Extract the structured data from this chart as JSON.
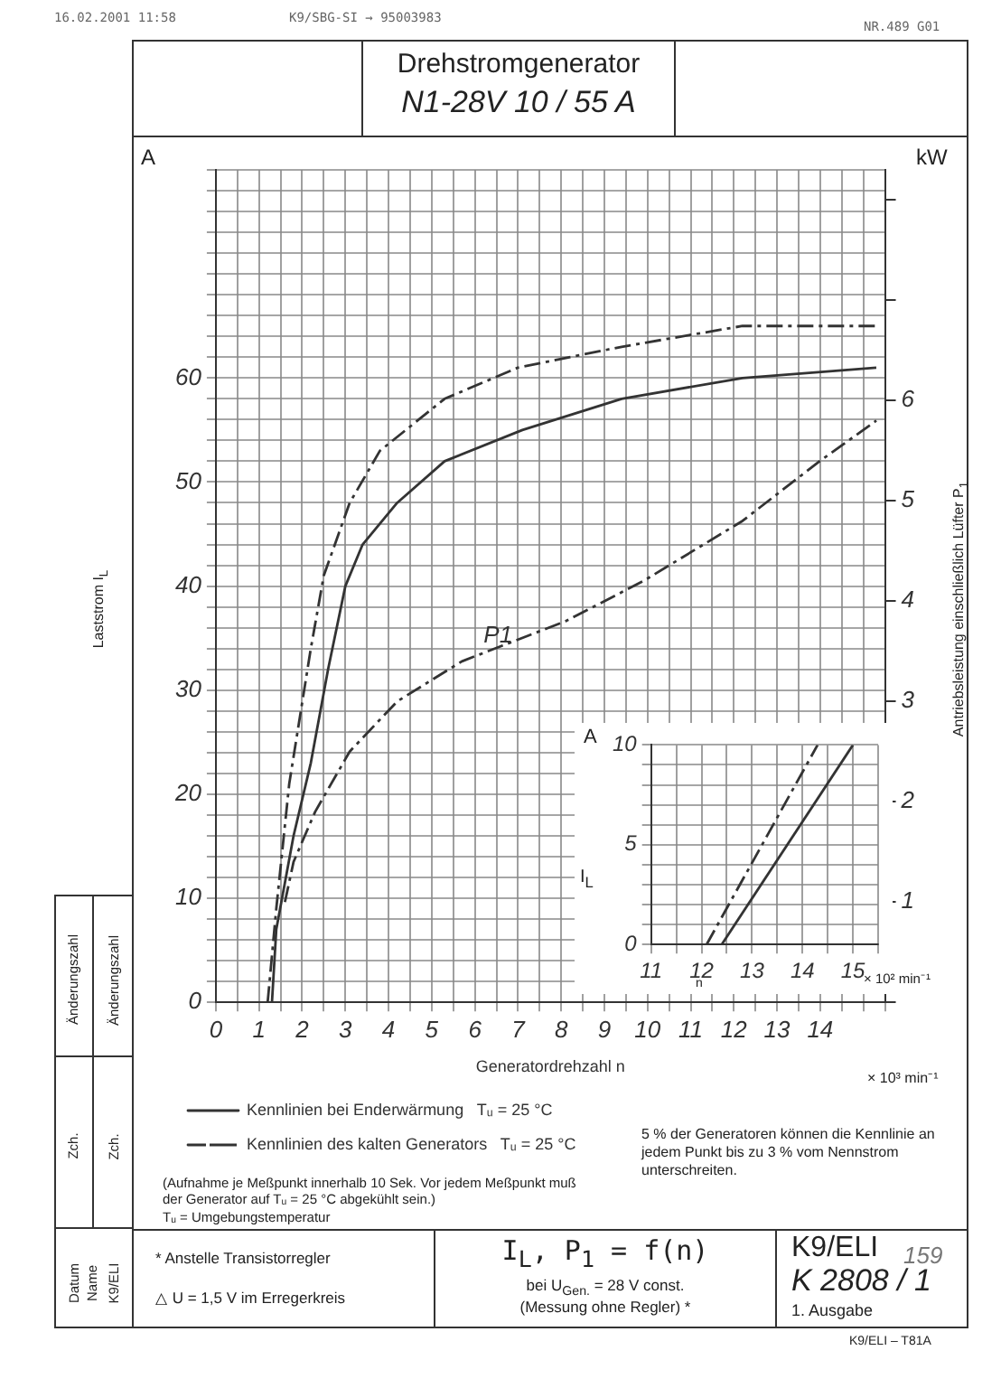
{
  "chart_data": [
    {
      "type": "line",
      "title": "Drehstromgenerator",
      "subtitle": "N1-28V 10 / 55 A",
      "xlabel": "Generatordrehzahl n",
      "ylabel": "Laststrom I$_{L}$",
      "y2label": "Antriebsleistung einschließlich Lüfter P$_{1}$",
      "annotations": [
        "16.02.2001  11:58",
        "K9/SBG-SI → 95003983",
        "NR.489  G01",
        "(Aufnahme je Meßpunkt innerhalb 10 Sek. Vor jedem Meßpunkt muß der Generator auf Tᵤ = 25 °C abgekühlt sein.)",
        "Tᵤ = Umgebungstemperatur",
        "5 % der Generatoren können die Kennlinie an jedem Punkt bis zu 3 % vom Nennstrom unterschreiten.",
        "* Anstelle Transistorregler",
        "△ U = 1,5 V im Erregerkreis",
        "I$_{L}$, P$_{1}$ = f(n)",
        "bei U$_{Gen.}$ = 28 V const.",
        "(Messung ohne Regler) *",
        "K9/ELI",
        "K 2808 / 1",
        "159",
        "1. Ausgabe",
        "K9/ELI – T81A",
        "Änderungszahl",
        "Zch.",
        "Änderungszahl",
        "Zch.",
        "Datum",
        "Name",
        "K9/ELI",
        "A",
        "kW",
        "× 10³ min⁻¹"
      ],
      "xlim": [
        0,
        15.5
      ],
      "xticks": [
        0,
        {
          "value": 0.5,
          "label": null
        },
        1,
        {
          "value": 1.5,
          "label": null
        },
        2,
        {
          "value": 2.5,
          "label": null
        },
        3,
        {
          "value": 3.5,
          "label": null
        },
        4,
        {
          "value": 4.5,
          "label": null
        },
        5,
        {
          "value": 5.5,
          "label": null
        },
        6,
        {
          "value": 6.5,
          "label": null
        },
        7,
        {
          "value": 7.5,
          "label": null
        },
        8,
        {
          "value": 8.5,
          "label": null
        },
        9,
        {
          "value": 9.5,
          "label": null
        },
        10,
        {
          "value": 10.5,
          "label": null
        },
        11,
        {
          "value": 11.5,
          "label": null
        },
        12,
        {
          "value": 12.5,
          "label": null
        },
        13,
        {
          "value": 13.5,
          "label": null
        },
        14,
        {
          "value": 14.5,
          "label": null
        },
        {
          "value": 15,
          "label": null
        },
        {
          "value": 15.5,
          "label": null
        }
      ],
      "ylim": [
        0,
        80
      ],
      "yticks": [
        0,
        {
          "value": 2,
          "label": null
        },
        {
          "value": 4,
          "label": null
        },
        {
          "value": 6,
          "label": null
        },
        {
          "value": 8,
          "label": null
        },
        10,
        {
          "value": 12,
          "label": null
        },
        {
          "value": 14,
          "label": null
        },
        {
          "value": 16,
          "label": null
        },
        {
          "value": 18,
          "label": null
        },
        20,
        {
          "value": 22,
          "label": null
        },
        {
          "value": 24,
          "label": null
        },
        {
          "value": 26,
          "label": null
        },
        {
          "value": 28,
          "label": null
        },
        30,
        {
          "value": 32,
          "label": null
        },
        {
          "value": 34,
          "label": null
        },
        {
          "value": 36,
          "label": null
        },
        {
          "value": 38,
          "label": null
        },
        40,
        {
          "value": 42,
          "label": null
        },
        {
          "value": 44,
          "label": null
        },
        {
          "value": 46,
          "label": null
        },
        {
          "value": 48,
          "label": null
        },
        50,
        {
          "value": 52,
          "label": null
        },
        {
          "value": 54,
          "label": null
        },
        {
          "value": 56,
          "label": null
        },
        {
          "value": 58,
          "label": null
        },
        60,
        {
          "value": 62,
          "label": null
        },
        {
          "value": 64,
          "label": null
        },
        {
          "value": 66,
          "label": null
        },
        {
          "value": 68,
          "label": null
        },
        {
          "value": 70,
          "label": null
        },
        {
          "value": 72,
          "label": null
        },
        {
          "value": 74,
          "label": null
        },
        {
          "value": 76,
          "label": null
        },
        {
          "value": 78,
          "label": null
        },
        {
          "value": 80,
          "label": null
        }
      ],
      "y2lim": [
        0,
        8.3
      ],
      "y2ticks": [
        {
          "value": 0,
          "label": null
        },
        1,
        2,
        3,
        4,
        5,
        6,
        {
          "value": 7,
          "label": null
        },
        {
          "value": 8,
          "label": null
        }
      ],
      "grid": true,
      "legend": "bottom",
      "series": [
        {
          "name": "Kennlinien bei Enderwärmung   Tᵤ = 25 °C",
          "color": "#333333",
          "line_style": "solid",
          "x": [
            1.3,
            1.4,
            1.8,
            2.2,
            2.6,
            3.0,
            3.4,
            4.2,
            5.3,
            7.1,
            9.4,
            12.2,
            15.3
          ],
          "values": [
            0,
            7,
            16,
            23,
            32,
            40,
            44,
            48,
            52,
            55,
            58,
            60,
            61
          ]
        },
        {
          "name": "Kennlinien des kalten Generators   Tᵤ = 25 °C",
          "color": "#333333",
          "line_style": "dashed",
          "x": [
            1.2,
            1.4,
            1.7,
            2.2,
            2.5,
            3.1,
            3.8,
            5.3,
            7.0,
            9.4,
            12.2,
            15.3
          ],
          "values": [
            0,
            9,
            21,
            34,
            41,
            48,
            53,
            58,
            61,
            63,
            65,
            65
          ]
        },
        {
          "name": "P1",
          "color": "#333333",
          "line_style": "dashed",
          "axis": "y2",
          "x": [
            1.6,
            1.8,
            2.3,
            3.1,
            4.2,
            5.7,
            8.1,
            9.9,
            12.2,
            14.0,
            15.3
          ],
          "values": [
            1.0,
            1.4,
            1.9,
            2.5,
            3.0,
            3.4,
            3.8,
            4.2,
            4.8,
            5.4,
            5.8
          ]
        }
      ]
    },
    {
      "type": "line",
      "xlabel": "n",
      "ylabel": "I$_{L}$",
      "annotations": [
        "A",
        "× 10² min⁻¹"
      ],
      "xlim": [
        11,
        15.5
      ],
      "xticks": [
        11,
        {
          "value": 11.5,
          "label": null
        },
        12,
        {
          "value": 12.5,
          "label": null
        },
        13,
        {
          "value": 13.5,
          "label": null
        },
        14,
        {
          "value": 14.5,
          "label": null
        },
        15,
        {
          "value": 15.5,
          "label": null
        }
      ],
      "ylim": [
        0,
        10
      ],
      "yticks": [
        0,
        {
          "value": 1,
          "label": null
        },
        {
          "value": 2,
          "label": null
        },
        {
          "value": 3,
          "label": null
        },
        {
          "value": 4,
          "label": null
        },
        5,
        {
          "value": 6,
          "label": null
        },
        {
          "value": 7,
          "label": null
        },
        {
          "value": 8,
          "label": null
        },
        {
          "value": 9,
          "label": null
        },
        10
      ],
      "grid": true,
      "series": [
        {
          "color": "#333333",
          "line_style": "solid",
          "x": [
            12.4,
            15.0
          ],
          "values": [
            0,
            10
          ]
        },
        {
          "color": "#333333",
          "line_style": "dashed",
          "x": [
            12.1,
            14.3
          ],
          "values": [
            0,
            10
          ]
        }
      ]
    }
  ]
}
